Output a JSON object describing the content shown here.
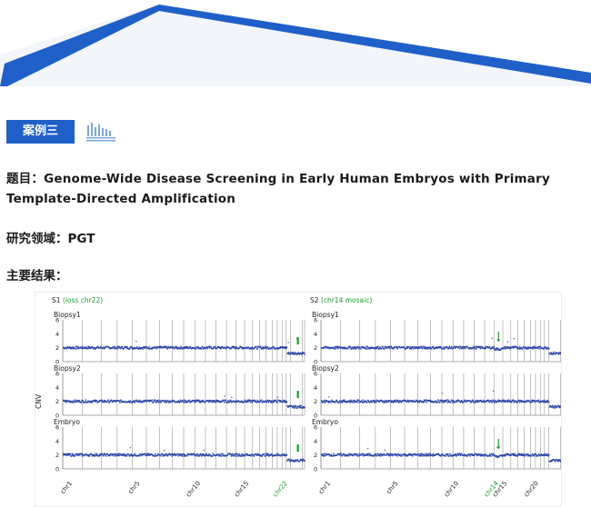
{
  "header": {
    "case_label": "案例三"
  },
  "article": {
    "title": "题目：Genome-Wide Disease Screening in Early Human Embryos with Primary Template-Directed Amplification",
    "field": "研究领域：PGT",
    "results_label": "主要结果："
  },
  "colors": {
    "accent": "#1f5fc8",
    "data_points": "#2a46a8",
    "highlight": "#1a9a2a"
  },
  "chart_data": {
    "type": "scatter",
    "ylabel": "CNV",
    "panels": [
      {
        "title": "S1",
        "annotation": "(loss chr22)",
        "rows": [
          {
            "label": "Biopsy1",
            "yticks": [
              "6",
              "4",
              "2",
              "0"
            ],
            "baseline": 2,
            "loss_value": 1.2,
            "loss_after_chr": 22
          },
          {
            "label": "Biopsy2",
            "yticks": [
              "6",
              "4",
              "2",
              "0"
            ],
            "baseline": 2,
            "loss_value": 1.2,
            "loss_after_chr": 22
          },
          {
            "label": "Embryo",
            "yticks": [
              "6",
              "4",
              "2",
              "0"
            ],
            "baseline": 2,
            "loss_value": 1.2,
            "loss_after_chr": 22
          }
        ],
        "xtick_labels": [
          "chr1",
          "chr5",
          "chr10",
          "chr15",
          "chr22"
        ],
        "highlight_chr": "chr22"
      },
      {
        "title": "S2",
        "annotation": "(chr14 mosaic)",
        "rows": [
          {
            "label": "Biopsy1",
            "yticks": [
              "6",
              "4",
              "2",
              "0"
            ],
            "baseline": 2,
            "loss_value": 1.2,
            "loss_after_chr": "X",
            "mosaic_chr": 14
          },
          {
            "label": "Biopsy2",
            "yticks": [
              "6",
              "4",
              "2",
              "0"
            ],
            "baseline": 2,
            "loss_value": 1.2,
            "loss_after_chr": "X"
          },
          {
            "label": "Embryo",
            "yticks": [
              "6",
              "4",
              "2",
              "0"
            ],
            "baseline": 2,
            "loss_value": 1.2,
            "loss_after_chr": "X",
            "mosaic_chr": 14
          }
        ],
        "xtick_labels": [
          "chr1",
          "chr5",
          "chr10",
          "chr14",
          "chr15",
          "chr20"
        ],
        "highlight_chr": "chr14"
      }
    ],
    "ylim": [
      0,
      6
    ]
  }
}
